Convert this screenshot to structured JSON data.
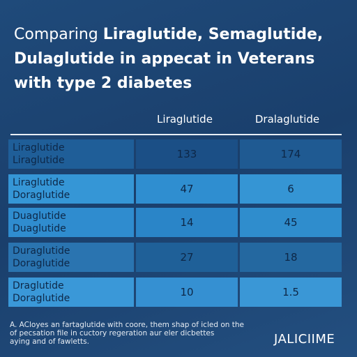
{
  "header": {
    "title_lead": "Comparing",
    "title_rest": "Liraglutide, Semaglutide, Dulaglutide in appecat in Veterans with type 2 diabetes"
  },
  "table": {
    "columns": [
      "Liraglutide",
      "Dralaglutide"
    ],
    "rows": [
      {
        "label": [
          "Liraglutide",
          "Liraglutide"
        ],
        "values": [
          133,
          174
        ]
      },
      {
        "label": [
          "Liraglutide",
          "Doraglutide"
        ],
        "values": [
          47,
          6
        ]
      },
      {
        "label": [
          "Duaglutide",
          "Duaglutide"
        ],
        "values": [
          14,
          45
        ]
      },
      {
        "label": [
          "Duraglutide",
          "Doraglutide"
        ],
        "values": [
          27,
          18
        ]
      },
      {
        "label": [
          "Draglutide",
          "Doraglutide"
        ],
        "values": [
          10,
          1.5
        ]
      }
    ]
  },
  "footer": {
    "note": [
      "A. ACloyes an fartaglutide with coore, them shap of icled on the",
      "of pecsation file in cuctory regeration aur eler dicbettes",
      "aying and of fawletts."
    ],
    "logo": "JALICIIME"
  }
}
